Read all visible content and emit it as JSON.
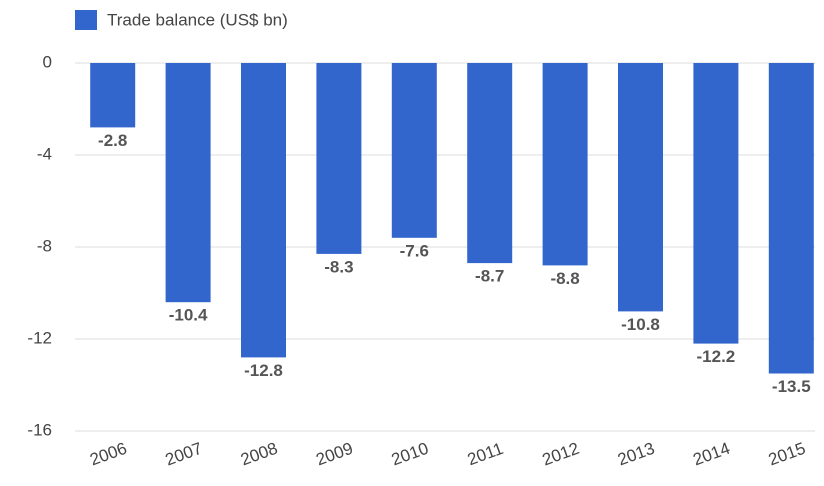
{
  "chart_data": {
    "type": "bar",
    "categories": [
      "2006",
      "2007",
      "2008",
      "2009",
      "2010",
      "2011",
      "2012",
      "2013",
      "2014",
      "2015"
    ],
    "series": [
      {
        "name": "Trade balance (US$ bn)",
        "color": "#3366cc",
        "values": [
          -2.8,
          -10.4,
          -12.8,
          -8.3,
          -7.6,
          -8.7,
          -8.8,
          -10.8,
          -12.2,
          -13.5
        ]
      }
    ],
    "ylim": [
      -16,
      0
    ],
    "yticks": [
      0,
      -4,
      -8,
      -12,
      -16
    ],
    "grid": true,
    "legend": "top-left"
  }
}
